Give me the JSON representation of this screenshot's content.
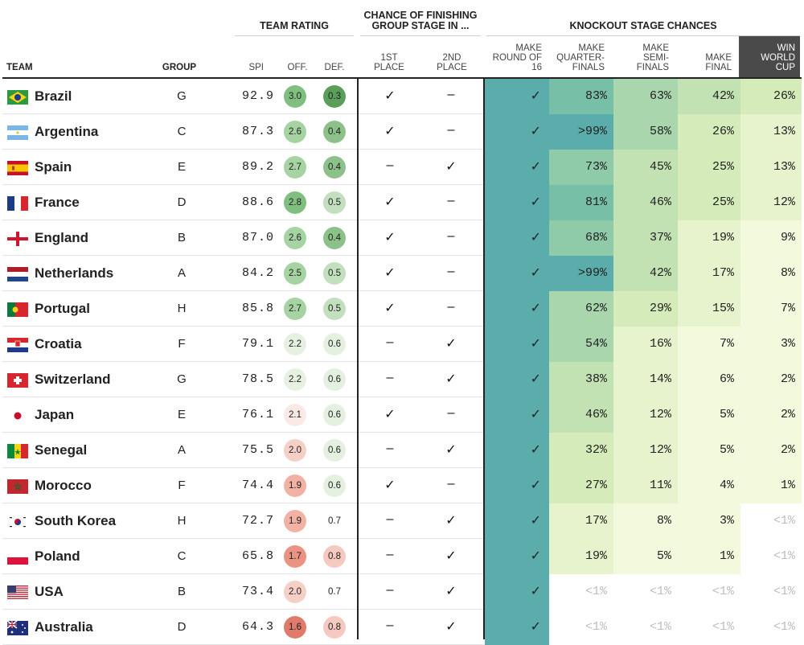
{
  "header": {
    "group_team_rating": "TEAM RATING",
    "group_chance_l1": "CHANCE OF FINISHING",
    "group_chance_l2": "GROUP STAGE IN ...",
    "group_knockout": "KNOCKOUT STAGE CHANCES",
    "col_team": "TEAM",
    "col_group": "GROUP",
    "col_spi": "SPI",
    "col_off": "OFF.",
    "col_def": "DEF.",
    "col_first_l1": "1ST",
    "col_first_l2": "PLACE",
    "col_second_l1": "2ND",
    "col_second_l2": "PLACE",
    "col_r16_l1": "MAKE",
    "col_r16_l2": "ROUND OF",
    "col_r16_l3": "16",
    "col_qf_l1": "MAKE",
    "col_qf_l2": "QUARTER-",
    "col_qf_l3": "FINALS",
    "col_sf_l1": "MAKE",
    "col_sf_l2": "SEMI-",
    "col_sf_l3": "FINALS",
    "col_final_l1": "MAKE",
    "col_final_l2": "FINAL",
    "col_win_l1": "WIN",
    "col_win_l2": "WORLD",
    "col_win_l3": "CUP"
  },
  "teams": [
    {
      "name": "Brazil",
      "flag": "brazil-flag",
      "group": "G",
      "spi": "92.9",
      "off": "3.0",
      "def": "0.3",
      "first": "✓",
      "second": "–",
      "r16": "✓",
      "qf": "83%",
      "sf": "63%",
      "final": "42%",
      "win": "26%"
    },
    {
      "name": "Argentina",
      "flag": "argentina-flag",
      "group": "C",
      "spi": "87.3",
      "off": "2.6",
      "def": "0.4",
      "first": "✓",
      "second": "–",
      "r16": "✓",
      "qf": ">99%",
      "sf": "58%",
      "final": "26%",
      "win": "13%"
    },
    {
      "name": "Spain",
      "flag": "spain-flag",
      "group": "E",
      "spi": "89.2",
      "off": "2.7",
      "def": "0.4",
      "first": "–",
      "second": "✓",
      "r16": "✓",
      "qf": "73%",
      "sf": "45%",
      "final": "25%",
      "win": "13%"
    },
    {
      "name": "France",
      "flag": "france-flag",
      "group": "D",
      "spi": "88.6",
      "off": "2.8",
      "def": "0.5",
      "first": "✓",
      "second": "–",
      "r16": "✓",
      "qf": "81%",
      "sf": "46%",
      "final": "25%",
      "win": "12%"
    },
    {
      "name": "England",
      "flag": "england-flag",
      "group": "B",
      "spi": "87.0",
      "off": "2.6",
      "def": "0.4",
      "first": "✓",
      "second": "–",
      "r16": "✓",
      "qf": "68%",
      "sf": "37%",
      "final": "19%",
      "win": "9%"
    },
    {
      "name": "Netherlands",
      "flag": "netherlands-flag",
      "group": "A",
      "spi": "84.2",
      "off": "2.5",
      "def": "0.5",
      "first": "✓",
      "second": "–",
      "r16": "✓",
      "qf": ">99%",
      "sf": "42%",
      "final": "17%",
      "win": "8%"
    },
    {
      "name": "Portugal",
      "flag": "portugal-flag",
      "group": "H",
      "spi": "85.8",
      "off": "2.7",
      "def": "0.5",
      "first": "✓",
      "second": "–",
      "r16": "✓",
      "qf": "62%",
      "sf": "29%",
      "final": "15%",
      "win": "7%"
    },
    {
      "name": "Croatia",
      "flag": "croatia-flag",
      "group": "F",
      "spi": "79.1",
      "off": "2.2",
      "def": "0.6",
      "first": "–",
      "second": "✓",
      "r16": "✓",
      "qf": "54%",
      "sf": "16%",
      "final": "7%",
      "win": "3%"
    },
    {
      "name": "Switzerland",
      "flag": "switzerland-flag",
      "group": "G",
      "spi": "78.5",
      "off": "2.2",
      "def": "0.6",
      "first": "–",
      "second": "✓",
      "r16": "✓",
      "qf": "38%",
      "sf": "14%",
      "final": "6%",
      "win": "2%"
    },
    {
      "name": "Japan",
      "flag": "japan-flag",
      "group": "E",
      "spi": "76.1",
      "off": "2.1",
      "def": "0.6",
      "first": "✓",
      "second": "–",
      "r16": "✓",
      "qf": "46%",
      "sf": "12%",
      "final": "5%",
      "win": "2%"
    },
    {
      "name": "Senegal",
      "flag": "senegal-flag",
      "group": "A",
      "spi": "75.5",
      "off": "2.0",
      "def": "0.6",
      "first": "–",
      "second": "✓",
      "r16": "✓",
      "qf": "32%",
      "sf": "12%",
      "final": "5%",
      "win": "2%"
    },
    {
      "name": "Morocco",
      "flag": "morocco-flag",
      "group": "F",
      "spi": "74.4",
      "off": "1.9",
      "def": "0.6",
      "first": "✓",
      "second": "–",
      "r16": "✓",
      "qf": "27%",
      "sf": "11%",
      "final": "4%",
      "win": "1%"
    },
    {
      "name": "South Korea",
      "flag": "south-korea-flag",
      "group": "H",
      "spi": "72.7",
      "off": "1.9",
      "def": "0.7",
      "first": "–",
      "second": "✓",
      "r16": "✓",
      "qf": "17%",
      "sf": "8%",
      "final": "3%",
      "win": "<1%"
    },
    {
      "name": "Poland",
      "flag": "poland-flag",
      "group": "C",
      "spi": "65.8",
      "off": "1.7",
      "def": "0.8",
      "first": "–",
      "second": "✓",
      "r16": "✓",
      "qf": "19%",
      "sf": "5%",
      "final": "1%",
      "win": "<1%"
    },
    {
      "name": "USA",
      "flag": "usa-flag",
      "group": "B",
      "spi": "73.4",
      "off": "2.0",
      "def": "0.7",
      "first": "–",
      "second": "✓",
      "r16": "✓",
      "qf": "<1%",
      "sf": "<1%",
      "final": "<1%",
      "win": "<1%"
    },
    {
      "name": "Australia",
      "flag": "australia-flag",
      "group": "D",
      "spi": "64.3",
      "off": "1.6",
      "def": "0.8",
      "first": "–",
      "second": "✓",
      "r16": "✓",
      "qf": "<1%",
      "sf": "<1%",
      "final": "<1%",
      "win": "<1%"
    }
  ],
  "colors": {
    "winhdr_bg": "#4a4a4a",
    "ko_scale": [
      "#ffffff",
      "#eef6d4",
      "#d4ebb8",
      "#b3dcaa",
      "#8ccaa8",
      "#5aadaa"
    ],
    "off_good": "#5a9e5a",
    "off_bad": "#e07a6a"
  }
}
